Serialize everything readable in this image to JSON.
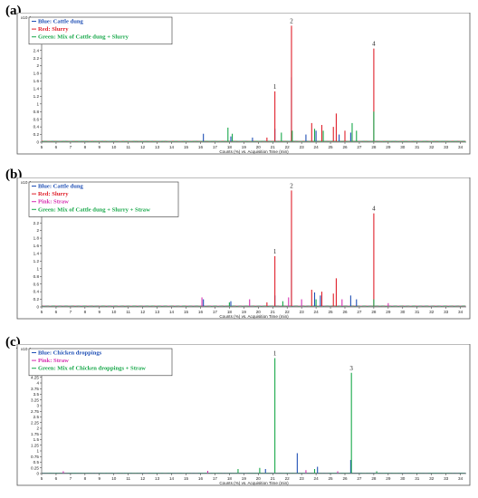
{
  "chart_data": [
    {
      "panel": "(a)",
      "type": "line",
      "yexp": "x10 4",
      "xlabel": "Counts (%) vs. Acquisition Time (min)",
      "xlim": [
        5,
        34.4
      ],
      "ylim": [
        0,
        3.2
      ],
      "yticks": [
        "0",
        "0.2",
        "0.4",
        "0.6",
        "0.8",
        "1",
        "1.2",
        "1.4",
        "1.6",
        "1.8",
        "2",
        "2.2",
        "2.4",
        "2.6",
        "2.8",
        "3"
      ],
      "legend": [
        {
          "text": "Blue: Cattle dung",
          "color": "#1f4fb5"
        },
        {
          "text": "Red: Slurry",
          "color": "#e0202a"
        },
        {
          "text": "Green: Mix of Cattle dung + Slurry",
          "color": "#18a84a"
        }
      ],
      "peaks": [
        {
          "label": "1",
          "x": 21.15,
          "y": 1.33,
          "color": "#e0202a"
        },
        {
          "label": "2",
          "x": 22.3,
          "y": 3.05,
          "color": "#e0202a"
        },
        {
          "label": "4",
          "x": 28.0,
          "y": 2.45,
          "color": "#e0202a"
        }
      ],
      "series": [
        {
          "color": "#1f4fb5",
          "points": [
            [
              16.2,
              0.22
            ],
            [
              18.1,
              0.15
            ],
            [
              19.6,
              0.12
            ],
            [
              21.15,
              0.35
            ],
            [
              22.3,
              1.7
            ],
            [
              23.3,
              0.2
            ],
            [
              24.0,
              0.3
            ],
            [
              25.6,
              0.2
            ],
            [
              26.4,
              0.25
            ]
          ]
        },
        {
          "color": "#e0202a",
          "points": [
            [
              20.6,
              0.12
            ],
            [
              21.15,
              1.33
            ],
            [
              22.3,
              3.05
            ],
            [
              23.7,
              0.5
            ],
            [
              24.4,
              0.45
            ],
            [
              25.2,
              0.4
            ],
            [
              25.4,
              0.75
            ],
            [
              26.0,
              0.3
            ],
            [
              28.0,
              2.45
            ]
          ]
        },
        {
          "color": "#18a84a",
          "points": [
            [
              17.9,
              0.38
            ],
            [
              18.2,
              0.22
            ],
            [
              21.6,
              0.25
            ],
            [
              22.35,
              0.3
            ],
            [
              23.9,
              0.35
            ],
            [
              24.5,
              0.3
            ],
            [
              26.5,
              0.5
            ],
            [
              26.8,
              0.3
            ],
            [
              28.0,
              0.8
            ]
          ]
        }
      ]
    },
    {
      "panel": "(b)",
      "type": "line",
      "yexp": "x10 4",
      "xlabel": "Counts (%) vs. Acquisition Time (min)",
      "xlim": [
        5,
        34.4
      ],
      "ylim": [
        0,
        3.2
      ],
      "yticks": [
        "0",
        "0.2",
        "0.4",
        "0.6",
        "0.8",
        "1",
        "1.2",
        "1.4",
        "1.6",
        "1.8",
        "2",
        "2.2",
        "2.4",
        "2.6",
        "2.8",
        "3"
      ],
      "legend": [
        {
          "text": "Blue: Cattle dung",
          "color": "#1f4fb5"
        },
        {
          "text": "Red: Slurry",
          "color": "#e0202a"
        },
        {
          "text": "Pink: Straw",
          "color": "#d62fb0"
        },
        {
          "text": "Green: Mix of Cattle dung + Slurry + Straw",
          "color": "#18a84a"
        }
      ],
      "peaks": [
        {
          "label": "1",
          "x": 21.15,
          "y": 1.33,
          "color": "#e0202a"
        },
        {
          "label": "2",
          "x": 22.3,
          "y": 3.05,
          "color": "#e0202a"
        },
        {
          "label": "4",
          "x": 28.0,
          "y": 2.45,
          "color": "#e0202a"
        }
      ],
      "series": [
        {
          "color": "#1f4fb5",
          "points": [
            [
              16.2,
              0.2
            ],
            [
              18.1,
              0.15
            ],
            [
              21.15,
              0.3
            ],
            [
              22.3,
              1.5
            ],
            [
              23.9,
              0.38
            ],
            [
              24.3,
              0.3
            ],
            [
              26.4,
              0.3
            ],
            [
              26.8,
              0.2
            ]
          ]
        },
        {
          "color": "#e0202a",
          "points": [
            [
              20.6,
              0.12
            ],
            [
              21.15,
              1.33
            ],
            [
              22.3,
              3.05
            ],
            [
              23.7,
              0.45
            ],
            [
              24.4,
              0.4
            ],
            [
              25.2,
              0.35
            ],
            [
              25.4,
              0.75
            ],
            [
              28.0,
              2.45
            ]
          ]
        },
        {
          "color": "#d62fb0",
          "points": [
            [
              16.1,
              0.25
            ],
            [
              19.4,
              0.2
            ],
            [
              22.1,
              0.25
            ],
            [
              23.0,
              0.2
            ],
            [
              25.8,
              0.2
            ],
            [
              29.0,
              0.1
            ]
          ]
        },
        {
          "color": "#18a84a",
          "points": [
            [
              18.0,
              0.12
            ],
            [
              21.7,
              0.15
            ],
            [
              24.0,
              0.2
            ],
            [
              28.0,
              0.2
            ]
          ]
        }
      ]
    },
    {
      "panel": "(c)",
      "type": "line",
      "yexp": "x10 4",
      "xlabel": "Counts (%) vs. Acquisition Time (min)",
      "xlim": [
        5,
        34.4
      ],
      "ylim": [
        0,
        5.4
      ],
      "yticks": [
        "0",
        "0.25",
        "0.5",
        "0.75",
        "1",
        "1.25",
        "1.5",
        "1.75",
        "2",
        "2.25",
        "2.5",
        "2.75",
        "3",
        "3.25",
        "3.5",
        "3.75",
        "4",
        "4.25",
        "4.5",
        "4.75",
        "5",
        "5.25"
      ],
      "legend": [
        {
          "text": "Blue: Chicken droppings",
          "color": "#1f4fb5"
        },
        {
          "text": "Pink: Straw",
          "color": "#d62fb0"
        },
        {
          "text": "Green: Mix of Chicken droppings + Straw",
          "color": "#18a84a"
        }
      ],
      "peaks": [
        {
          "label": "1",
          "x": 21.15,
          "y": 5.1,
          "color": "#18a84a"
        },
        {
          "label": "3",
          "x": 26.45,
          "y": 4.45,
          "color": "#18a84a"
        }
      ],
      "series": [
        {
          "color": "#1f4fb5",
          "points": [
            [
              22.7,
              0.9
            ],
            [
              24.1,
              0.3
            ],
            [
              20.5,
              0.2
            ],
            [
              26.4,
              0.6
            ]
          ]
        },
        {
          "color": "#d62fb0",
          "points": [
            [
              6.5,
              0.1
            ],
            [
              16.5,
              0.12
            ],
            [
              23.3,
              0.15
            ],
            [
              25.5,
              0.1
            ]
          ]
        },
        {
          "color": "#18a84a",
          "points": [
            [
              18.6,
              0.2
            ],
            [
              20.1,
              0.25
            ],
            [
              21.15,
              5.1
            ],
            [
              23.9,
              0.2
            ],
            [
              26.45,
              4.45
            ],
            [
              28.2,
              0.1
            ]
          ]
        }
      ]
    }
  ]
}
